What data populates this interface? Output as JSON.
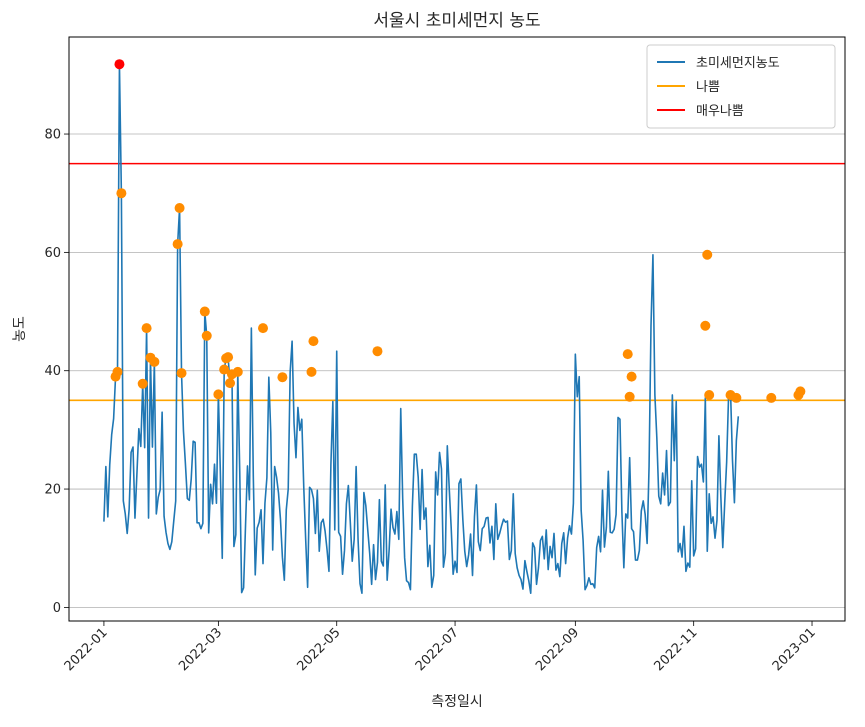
{
  "chart_data": {
    "type": "line",
    "title": "서울시 초미세먼지 농도",
    "xlabel": "측정일시",
    "ylabel": "농도",
    "grid": "y-axis only",
    "legend_placement": "top-right",
    "xlim": [
      "2021-12-14",
      "2023-01-18"
    ],
    "ylim": [
      -2.3,
      96.4
    ],
    "x_ticks": [
      "2022-01",
      "2022-03",
      "2022-05",
      "2022-07",
      "2022-09",
      "2022-11",
      "2023-01"
    ],
    "y_ticks": [
      0,
      20,
      40,
      60,
      80
    ],
    "thresholds": [
      {
        "name": "나쁨",
        "value": 35,
        "color": "#ffa500"
      },
      {
        "name": "매우나쁨",
        "value": 75,
        "color": "#ff0000"
      }
    ],
    "series": [
      {
        "name": "초미세먼지농도",
        "color": "#1f77b4",
        "start_date": "2022-01-01",
        "values": [
          14.5,
          23.8,
          15.3,
          24.1,
          29.2,
          31.9,
          39.0,
          39.8,
          91.8,
          70.0,
          18.0,
          15.8,
          12.5,
          16.6,
          26.2,
          27.1,
          15.1,
          22.5,
          30.2,
          27.2,
          37.8,
          27.0,
          47.2,
          15.1,
          42.2,
          27.1,
          41.5,
          15.8,
          18.6,
          19.9,
          33.0,
          15.4,
          12.7,
          10.8,
          9.8,
          11.1,
          14.6,
          18.0,
          61.4,
          67.5,
          39.6,
          29.8,
          24.3,
          18.4,
          18.1,
          21.7,
          28.1,
          27.9,
          14.3,
          14.3,
          13.3,
          14.2,
          50.0,
          45.9,
          12.6,
          20.8,
          17.5,
          24.2,
          17.6,
          36.0,
          23.1,
          8.3,
          40.2,
          42.1,
          42.3,
          37.9,
          39.4,
          10.3,
          12.3,
          39.8,
          23.1,
          2.5,
          3.3,
          13.9,
          23.9,
          18.2,
          47.2,
          22.2,
          5.5,
          13.4,
          14.4,
          16.5,
          7.4,
          17.6,
          21.9,
          38.9,
          29.6,
          9.7,
          23.8,
          22.0,
          19.3,
          14.9,
          8.5,
          4.6,
          16.5,
          20.0,
          39.8,
          45.0,
          31.1,
          25.3,
          33.8,
          29.9,
          31.8,
          20.4,
          11.5,
          3.4,
          20.3,
          19.9,
          18.4,
          12.5,
          19.8,
          9.5,
          14.3,
          14.9,
          12.9,
          9.8,
          6.1,
          24.1,
          34.8,
          13.1,
          43.3,
          12.7,
          12.0,
          5.6,
          9.6,
          17.5,
          20.6,
          14.4,
          7.8,
          11.5,
          23.8,
          11.5,
          4.0,
          2.4,
          19.4,
          17.2,
          13.1,
          9.1,
          3.9,
          10.6,
          4.7,
          7.6,
          18.2,
          7.8,
          7.0,
          20.7,
          4.6,
          9.6,
          16.6,
          13.5,
          12.4,
          16.2,
          11.5,
          33.6,
          18.5,
          8.4,
          4.5,
          4.2,
          3.0,
          17.1,
          25.9,
          25.9,
          22.0,
          13.2,
          23.3,
          14.9,
          16.8,
          6.9,
          10.5,
          3.4,
          5.4,
          22.9,
          19.0,
          26.2,
          23.4,
          6.8,
          9.1,
          27.3,
          20.1,
          13.5,
          5.6,
          7.8,
          5.9,
          20.9,
          21.7,
          14.9,
          9.5,
          6.9,
          8.9,
          12.4,
          5.4,
          15.3,
          20.7,
          11.1,
          9.6,
          13.3,
          13.7,
          15.1,
          15.2,
          10.9,
          13.7,
          8.1,
          17.5,
          11.5,
          12.5,
          13.8,
          14.9,
          14.4,
          14.6,
          8.1,
          9.6,
          19.2,
          9.1,
          6.7,
          5.4,
          4.7,
          3.1,
          7.9,
          6.1,
          4.5,
          2.4,
          10.9,
          10.1,
          3.9,
          6.7,
          11.3,
          12.0,
          8.2,
          13.1,
          6.4,
          10.3,
          8.4,
          12.5,
          6.3,
          7.4,
          5.2,
          10.8,
          12.6,
          7.4,
          11.7,
          13.8,
          12.4,
          17.6,
          42.8,
          35.6,
          39.0,
          16.4,
          11.3,
          3.0,
          3.7,
          5.0,
          3.9,
          4.0,
          3.3,
          10.1,
          12.0,
          9.4,
          19.8,
          10.2,
          13.5,
          23.0,
          12.7,
          12.6,
          13.2,
          15.7,
          32.1,
          31.8,
          16.1,
          6.7,
          15.8,
          15.1,
          25.3,
          13.3,
          12.8,
          8.0,
          8.0,
          9.6,
          16.3,
          18.0,
          15.7,
          10.8,
          23.8,
          47.6,
          59.6,
          35.9,
          28.7,
          18.8,
          17.5,
          22.7,
          19.0,
          26.5,
          17.2,
          17.8,
          35.9,
          24.8,
          34.8,
          9.4,
          10.8,
          8.5,
          13.7,
          6.1,
          7.5,
          6.8,
          21.4,
          8.7,
          9.9,
          25.5,
          23.7,
          24.2,
          21.2,
          35.4,
          9.5,
          19.2,
          14.2,
          15.3,
          11.7,
          14.7,
          29.0,
          18.7,
          10.1,
          17.7,
          24.6,
          35.9,
          36.5,
          24.9,
          17.7,
          28.2,
          32.3
        ]
      },
      {
        "name": "",
        "type": "scatter",
        "color": "#ff8c00",
        "points": [
          {
            "date": "2022-01-07",
            "value": 39.0
          },
          {
            "date": "2022-01-08",
            "value": 39.8
          },
          {
            "date": "2022-01-10",
            "value": 70.0
          },
          {
            "date": "2022-01-21",
            "value": 37.8
          },
          {
            "date": "2022-01-23",
            "value": 47.2
          },
          {
            "date": "2022-01-25",
            "value": 42.2
          },
          {
            "date": "2022-01-27",
            "value": 41.5
          },
          {
            "date": "2022-02-08",
            "value": 61.4
          },
          {
            "date": "2022-02-09",
            "value": 67.5
          },
          {
            "date": "2022-02-10",
            "value": 39.6
          },
          {
            "date": "2022-02-22",
            "value": 50.0
          },
          {
            "date": "2022-02-23",
            "value": 45.9
          },
          {
            "date": "2022-03-01",
            "value": 36.0
          },
          {
            "date": "2022-03-04",
            "value": 40.2
          },
          {
            "date": "2022-03-05",
            "value": 42.1
          },
          {
            "date": "2022-03-06",
            "value": 42.3
          },
          {
            "date": "2022-03-07",
            "value": 37.9
          },
          {
            "date": "2022-03-08",
            "value": 39.4
          },
          {
            "date": "2022-03-11",
            "value": 39.8
          },
          {
            "date": "2022-03-24",
            "value": 47.2
          },
          {
            "date": "2022-04-03",
            "value": 38.9
          },
          {
            "date": "2022-04-18",
            "value": 39.8
          },
          {
            "date": "2022-04-19",
            "value": 45.0
          },
          {
            "date": "2022-05-22",
            "value": 43.3
          },
          {
            "date": "2022-09-28",
            "value": 42.8
          },
          {
            "date": "2022-09-29",
            "value": 35.6
          },
          {
            "date": "2022-09-30",
            "value": 39.0
          },
          {
            "date": "2022-11-07",
            "value": 47.6
          },
          {
            "date": "2022-11-08",
            "value": 59.6
          },
          {
            "date": "2022-11-09",
            "value": 35.9
          },
          {
            "date": "2022-11-20",
            "value": 35.9
          },
          {
            "date": "2022-11-23",
            "value": 35.4
          },
          {
            "date": "2022-12-11",
            "value": 35.4
          },
          {
            "date": "2022-12-25",
            "value": 35.9
          },
          {
            "date": "2022-12-26",
            "value": 36.5
          }
        ]
      },
      {
        "name": "",
        "type": "scatter",
        "color": "#ff0000",
        "points": [
          {
            "date": "2022-01-09",
            "value": 91.8
          }
        ]
      }
    ]
  }
}
